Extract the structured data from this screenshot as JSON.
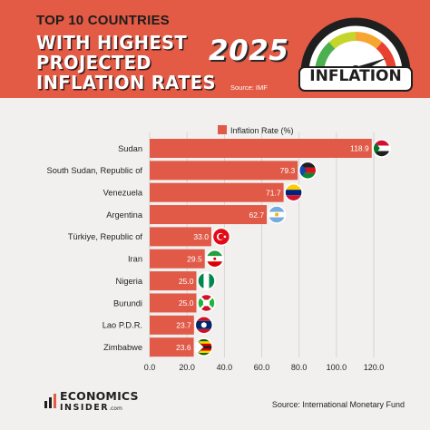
{
  "header": {
    "kicker": "TOP 10 COUNTRIES",
    "title_line1": "WITH HIGHEST",
    "title_line2": "PROJECTED",
    "title_line3": "INFLATION RATES",
    "year": "2025",
    "source_tag": "Source: IMF",
    "gauge_label": "INFLATION"
  },
  "footer": {
    "brand_top": "ECONOMICS",
    "brand_bottom": "INSIDER",
    "brand_suffix": ".com",
    "source": "Source: International Monetary Fund"
  },
  "colors": {
    "accent": "#e35a45",
    "bar": "#e05a47",
    "background": "#f1f0ef"
  },
  "chart_data": {
    "type": "bar",
    "orientation": "horizontal",
    "legend": "top",
    "series": [
      {
        "name": "Inflation Rate (%)",
        "values": [
          118.9,
          79.3,
          71.7,
          62.7,
          33.0,
          29.5,
          25.0,
          25.0,
          23.7,
          23.6
        ]
      }
    ],
    "categories": [
      "Sudan",
      "South Sudan, Republic of",
      "Venezuela",
      "Argentina",
      "Türkiye, Republic of",
      "Iran",
      "Nigeria",
      "Burundi",
      "Lao P.D.R.",
      "Zimbabwe"
    ],
    "value_labels": [
      "118.9",
      "79.3",
      "71.7",
      "62.7",
      "33.0",
      "29.5",
      "25.0",
      "25.0",
      "23.7",
      "23.6"
    ],
    "xticks": [
      "0.0",
      "20.0",
      "40.0",
      "60.0",
      "80.0",
      "100.0",
      "120.0"
    ],
    "xtick_values": [
      0,
      20,
      40,
      60,
      80,
      100,
      120
    ],
    "xlim": [
      0,
      120
    ],
    "grid": true,
    "flags": [
      "sudan-flag-icon",
      "south-sudan-flag-icon",
      "venezuela-flag-icon",
      "argentina-flag-icon",
      "turkiye-flag-icon",
      "iran-flag-icon",
      "nigeria-flag-icon",
      "burundi-flag-icon",
      "laos-flag-icon",
      "zimbabwe-flag-icon"
    ]
  }
}
